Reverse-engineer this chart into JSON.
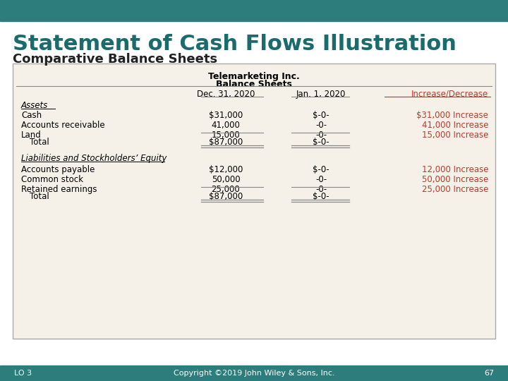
{
  "title": "Statement of Cash Flows Illustration",
  "subtitle": "Comparative Balance Sheets",
  "header_bg": "#2d7d7d",
  "footer_bg": "#2d7d7d",
  "slide_bg": "#ffffff",
  "title_color": "#1a6b6b",
  "subtitle_color": "#222222",
  "table_bg": "#f5f0e8",
  "table_title1": "Telemarketing Inc.",
  "table_title2": "Balance Sheets",
  "col_headers": [
    "",
    "Dec. 31, 2020",
    "Jan. 1, 2020",
    "Increase/Decrease"
  ],
  "col_header_color": [
    "#000000",
    "#000000",
    "#000000",
    "#c0392b"
  ],
  "section1_label": "Assets",
  "rows_assets": [
    [
      "Cash",
      "$31,000",
      "$-0-",
      "$31,000 Increase"
    ],
    [
      "Accounts receivable",
      "41,000",
      "-0-",
      "41,000 Increase"
    ],
    [
      "Land",
      "15,000",
      "-0-",
      "15,000 Increase"
    ]
  ],
  "total_assets": [
    "Total",
    "$87,000",
    "$-0-",
    ""
  ],
  "section2_label": "Liabilities and Stockholders’ Equity",
  "rows_liabilities": [
    [
      "Accounts payable",
      "$12,000",
      "$-0-",
      "12,000 Increase"
    ],
    [
      "Common stock",
      "50,000",
      "-0-",
      "50,000 Increase"
    ],
    [
      "Retained earnings",
      "25,000",
      "-0-",
      "25,000 Increase"
    ]
  ],
  "total_liabilities": [
    "Total",
    "$87,000",
    "$-0-",
    ""
  ],
  "increase_color": "#c0392b",
  "footer_text": "Copyright ©2019 John Wiley & Sons, Inc.",
  "lo_text": "LO 3",
  "page_num": "67"
}
